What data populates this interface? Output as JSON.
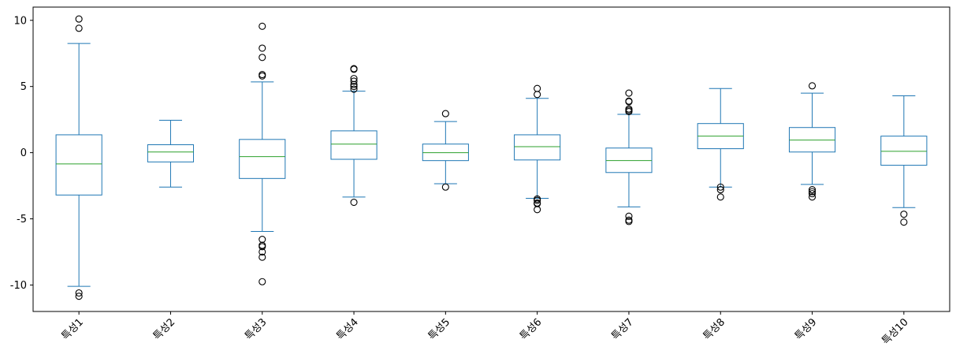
{
  "chart_data": {
    "type": "box",
    "categories": [
      "특성1",
      "특성2",
      "특성3",
      "특성4",
      "특성5",
      "특성6",
      "특성7",
      "특성8",
      "특성9",
      "특성10"
    ],
    "boxes": [
      {
        "whisker_low": -10.1,
        "q1": -3.2,
        "median": -0.85,
        "q3": 1.35,
        "whisker_high": 8.25,
        "outliers": [
          10.1,
          9.4,
          -10.6,
          -10.85
        ]
      },
      {
        "whisker_low": -2.6,
        "q1": -0.7,
        "median": 0.05,
        "q3": 0.6,
        "whisker_high": 2.45,
        "outliers": []
      },
      {
        "whisker_low": -5.95,
        "q1": -1.95,
        "median": -0.3,
        "q3": 1.0,
        "whisker_high": 5.35,
        "outliers": [
          9.55,
          7.9,
          7.2,
          5.9,
          5.8,
          -6.55,
          -7.0,
          -7.1,
          -7.5,
          -7.9,
          -9.75
        ]
      },
      {
        "whisker_low": -3.35,
        "q1": -0.5,
        "median": 0.65,
        "q3": 1.65,
        "whisker_high": 4.65,
        "outliers": [
          6.35,
          6.3,
          5.6,
          5.4,
          5.15,
          5.0,
          4.8,
          -3.75
        ]
      },
      {
        "whisker_low": -2.35,
        "q1": -0.6,
        "median": 0.0,
        "q3": 0.65,
        "whisker_high": 2.35,
        "outliers": [
          2.95,
          -2.6
        ]
      },
      {
        "whisker_low": -3.45,
        "q1": -0.55,
        "median": 0.45,
        "q3": 1.35,
        "whisker_high": 4.1,
        "outliers": [
          4.85,
          4.4,
          -3.5,
          -3.6,
          -3.8,
          -3.85,
          -4.3
        ]
      },
      {
        "whisker_low": -4.1,
        "q1": -1.5,
        "median": -0.6,
        "q3": 0.35,
        "whisker_high": 2.9,
        "outliers": [
          4.5,
          3.9,
          3.85,
          3.3,
          3.2,
          3.1,
          -4.8,
          -5.1,
          -5.2
        ]
      },
      {
        "whisker_low": -2.6,
        "q1": 0.3,
        "median": 1.25,
        "q3": 2.2,
        "whisker_high": 4.85,
        "outliers": [
          -2.6,
          -2.8,
          -3.35
        ]
      },
      {
        "whisker_low": -2.4,
        "q1": 0.05,
        "median": 0.95,
        "q3": 1.9,
        "whisker_high": 4.5,
        "outliers": [
          5.05,
          -2.8,
          -2.95,
          -3.1,
          -3.35
        ]
      },
      {
        "whisker_low": -4.15,
        "q1": -0.95,
        "median": 0.1,
        "q3": 1.25,
        "whisker_high": 4.3,
        "outliers": [
          -4.65,
          -5.25
        ]
      }
    ],
    "ylim": [
      -12,
      11
    ],
    "yticks": [
      -10,
      -5,
      0,
      5,
      10
    ],
    "ytick_labels": [
      "-10",
      "-5",
      "0",
      "5",
      "10"
    ],
    "title": "",
    "xlabel": "",
    "ylabel": "",
    "grid": false,
    "colors": {
      "box": "#1f77b4",
      "median": "#2ca02c",
      "outlier": "#000000"
    }
  }
}
